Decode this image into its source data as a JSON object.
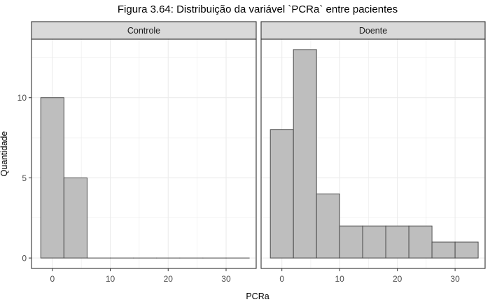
{
  "chart_data": {
    "type": "bar",
    "title": "Figura 3.64: Distribuição da variável `PCRa` entre pacientes",
    "xlabel": "PCRa",
    "ylabel": "Quantidade",
    "x_ticks": [
      0,
      10,
      20,
      30
    ],
    "y_ticks": [
      0,
      5,
      10
    ],
    "xlim": [
      -3.6,
      35.2
    ],
    "ylim": [
      -0.65,
      13.65
    ],
    "bin_width": 4,
    "grid": true,
    "panels": [
      {
        "name": "Controle",
        "bins": [
          {
            "x0": -2,
            "x1": 2,
            "count": 10
          },
          {
            "x0": 2,
            "x1": 6,
            "count": 5
          },
          {
            "x0": 6,
            "x1": 10,
            "count": 0
          },
          {
            "x0": 10,
            "x1": 14,
            "count": 0
          },
          {
            "x0": 14,
            "x1": 18,
            "count": 0
          },
          {
            "x0": 18,
            "x1": 22,
            "count": 0
          },
          {
            "x0": 22,
            "x1": 26,
            "count": 0
          },
          {
            "x0": 26,
            "x1": 30,
            "count": 0
          },
          {
            "x0": 30,
            "x1": 34,
            "count": 0
          }
        ]
      },
      {
        "name": "Doente",
        "bins": [
          {
            "x0": -2,
            "x1": 2,
            "count": 8
          },
          {
            "x0": 2,
            "x1": 6,
            "count": 13
          },
          {
            "x0": 6,
            "x1": 10,
            "count": 4
          },
          {
            "x0": 10,
            "x1": 14,
            "count": 2
          },
          {
            "x0": 14,
            "x1": 18,
            "count": 2
          },
          {
            "x0": 18,
            "x1": 22,
            "count": 2
          },
          {
            "x0": 22,
            "x1": 26,
            "count": 2
          },
          {
            "x0": 26,
            "x1": 30,
            "count": 1
          },
          {
            "x0": 30,
            "x1": 34,
            "count": 1
          }
        ]
      }
    ]
  },
  "colors": {
    "bar_fill": "#bebebe",
    "bar_stroke": "#4d4d4d",
    "strip_fill": "#d9d9d9",
    "grid": "#ebebeb",
    "panel_border": "#333333"
  }
}
